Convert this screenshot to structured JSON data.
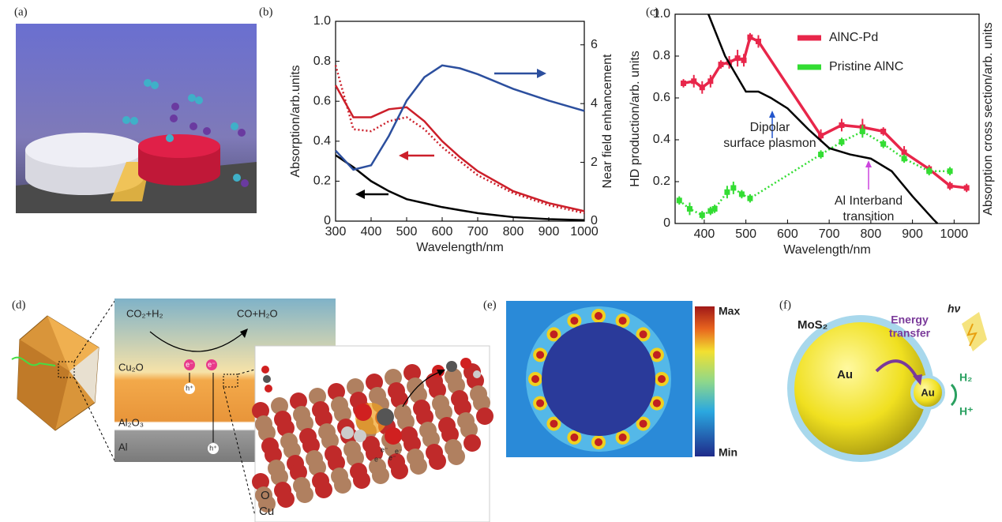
{
  "panel_labels": [
    "(a)",
    "(b)",
    "(c)",
    "(d)",
    "(e)",
    "(f)"
  ],
  "chart_data": [
    {
      "type": "line",
      "xlabel": "Wavelength/nm",
      "ylabel": "Absorption/arb.units",
      "y2label": "Near field enhancement",
      "x": [
        300,
        350,
        400,
        450,
        500,
        550,
        600,
        650,
        700,
        800,
        900,
        1000
      ],
      "series": [
        {
          "color": "#000000",
          "values": [
            0.33,
            0.27,
            0.2,
            0.15,
            0.11,
            0.09,
            0.07,
            0.055,
            0.04,
            0.02,
            0.01,
            0.005
          ]
        },
        {
          "color": "#cc1f2a",
          "values": [
            0.68,
            0.52,
            0.52,
            0.56,
            0.57,
            0.5,
            0.4,
            0.32,
            0.25,
            0.15,
            0.09,
            0.05
          ]
        },
        {
          "color": "#cc1f2a",
          "dash": "dotted",
          "values": [
            0.78,
            0.46,
            0.45,
            0.5,
            0.52,
            0.46,
            0.37,
            0.3,
            0.23,
            0.14,
            0.08,
            0.04
          ]
        },
        {
          "color": "#2c4f9e",
          "axis": "y2",
          "values": [
            2.4,
            1.75,
            1.9,
            2.9,
            4.1,
            4.9,
            5.3,
            5.2,
            5.0,
            4.5,
            4.1,
            3.75
          ]
        }
      ],
      "xlim": [
        300,
        1000
      ],
      "xticks": [
        300,
        400,
        500,
        600,
        700,
        800,
        900,
        1000
      ],
      "ylim": [
        0,
        1
      ],
      "yticks": [
        0,
        0.2,
        0.4,
        0.6,
        0.8,
        {
          "value": 1,
          "label": "1.0"
        }
      ],
      "y2lim": [
        0,
        6.8
      ],
      "y2ticks": [
        0,
        2,
        4,
        6
      ]
    },
    {
      "type": "line",
      "xlabel": "Wavelength/nm",
      "ylabel": "HD production/arb. units",
      "ylabel_color": "#e8264a",
      "y2label": "Absorption cross section/arb. units",
      "legend": "upper right",
      "series": [
        {
          "name": "AlNC-Pd",
          "color": "#e8264a",
          "x": [
            350,
            375,
            395,
            415,
            440,
            460,
            480,
            495,
            510,
            530,
            680,
            730,
            780,
            830,
            880,
            940,
            990,
            1030
          ],
          "values": [
            0.67,
            0.68,
            0.65,
            0.68,
            0.76,
            0.77,
            0.79,
            0.78,
            0.89,
            0.87,
            0.42,
            0.47,
            0.46,
            0.44,
            0.34,
            0.26,
            0.18,
            0.17
          ],
          "errors": [
            0.02,
            0.03,
            0.03,
            0.03,
            0.02,
            0.03,
            0.04,
            0.03,
            0.02,
            0.03,
            0.03,
            0.03,
            0.04,
            0.02,
            0.03,
            0.02,
            0.02,
            0.02
          ]
        },
        {
          "name": "Pristine AlNC",
          "color": "#33dd33",
          "dash": "dotted",
          "x": [
            340,
            365,
            395,
            415,
            425,
            455,
            470,
            490,
            510,
            680,
            730,
            780,
            830,
            880,
            940,
            990
          ],
          "values": [
            0.11,
            0.07,
            0.04,
            0.06,
            0.07,
            0.15,
            0.17,
            0.14,
            0.12,
            0.33,
            0.39,
            0.44,
            0.38,
            0.31,
            0.25,
            0.25
          ],
          "errors": [
            0.02,
            0.03,
            0.02,
            0.02,
            0.02,
            0.03,
            0.03,
            0.02,
            0.02,
            0.02,
            0.02,
            0.03,
            0.02,
            0.02,
            0.02,
            0.02
          ]
        },
        {
          "color": "#000000",
          "axis": "y2",
          "x": [
            410,
            450,
            500,
            530,
            560,
            600,
            650,
            700,
            750,
            800,
            850,
            900,
            950,
            960
          ],
          "values": [
            1.0,
            0.8,
            0.63,
            0.63,
            0.6,
            0.55,
            0.45,
            0.36,
            0.33,
            0.31,
            0.25,
            0.13,
            0.02,
            0
          ]
        }
      ],
      "annotations": [
        {
          "lines": [
            "Dipolar",
            "surface plasmon"
          ],
          "color": "#2255cc"
        },
        {
          "lines": [
            "Al Interband",
            "transition"
          ],
          "color": "#cc44dd"
        }
      ],
      "xlim": [
        330,
        1060
      ],
      "xticks": [
        400,
        500,
        600,
        700,
        800,
        900,
        1000
      ],
      "ylim": [
        0,
        1
      ],
      "yticks": [
        0,
        0.2,
        0.4,
        0.6,
        0.8,
        {
          "value": 1,
          "label": "1.0"
        }
      ],
      "y2lim": [
        0,
        1
      ]
    }
  ],
  "diagram_d": {
    "reaction_left": "CO₂+H₂",
    "reaction_right": "CO+H₂O",
    "layers": [
      "Cu₂O",
      "Al₂O₃",
      "Al"
    ],
    "electron": "e⁻",
    "hole": "h⁺",
    "cluster": [
      "e⁻",
      "e⁻",
      "e⁻",
      "e⁻"
    ],
    "atoms": [
      "O",
      "Cu"
    ]
  },
  "diagram_e": {
    "max": "Max",
    "min": "Min"
  },
  "diagram_f": {
    "shell": "MoS₂",
    "core": "Au",
    "small": "Au",
    "transfer": [
      "Energy",
      "transfer"
    ],
    "light": "hν",
    "product": "H₂",
    "reactant": "H⁺"
  }
}
